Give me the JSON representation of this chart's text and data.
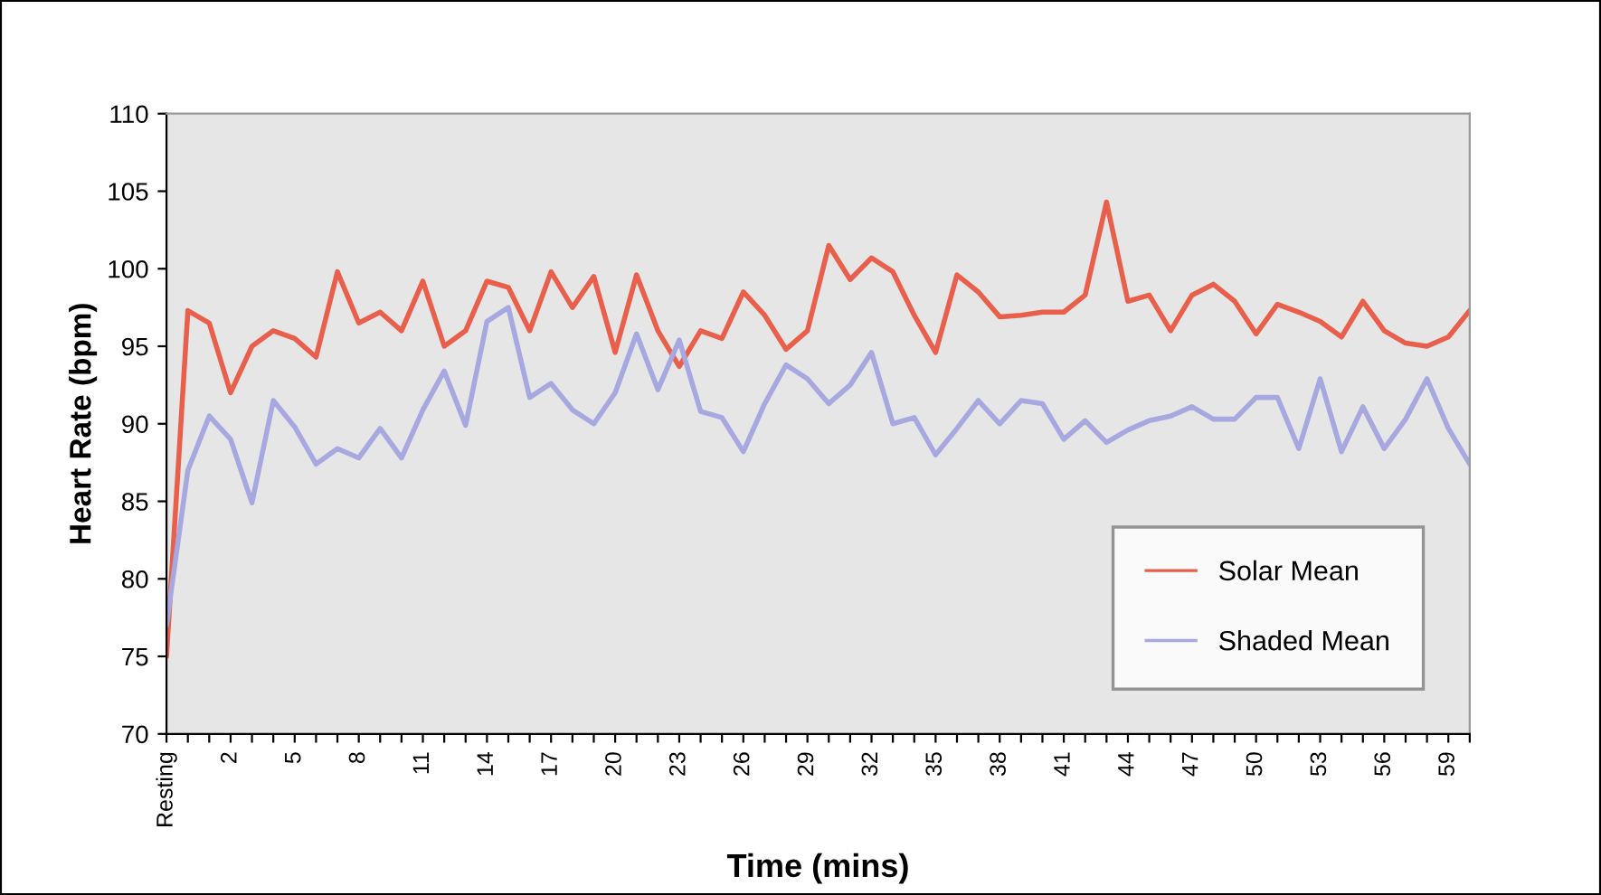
{
  "chart_data": {
    "type": "line",
    "xlabel": "Time (mins)",
    "ylabel": "Heart Rate (bpm)",
    "categories": [
      "Resting",
      null,
      null,
      "2",
      null,
      null,
      "5",
      null,
      null,
      "8",
      null,
      null,
      "11",
      null,
      null,
      "14",
      null,
      null,
      "17",
      null,
      null,
      "20",
      null,
      null,
      "23",
      null,
      null,
      "26",
      null,
      null,
      "29",
      null,
      null,
      "32",
      null,
      null,
      "35",
      null,
      null,
      "38",
      null,
      null,
      "41",
      null,
      null,
      "44",
      null,
      null,
      "47",
      null,
      null,
      "50",
      null,
      null,
      "53",
      null,
      null,
      "56",
      null,
      null,
      "59",
      null
    ],
    "ylim": [
      70,
      110
    ],
    "yticks": [
      70,
      75,
      80,
      85,
      90,
      95,
      100,
      105,
      110
    ],
    "grid": false,
    "legend": "bottom right",
    "marker": "none",
    "line_style": "solid",
    "series": [
      {
        "name": "Solar Mean",
        "color": "#e8604c",
        "values": [
          75,
          97.3,
          96.5,
          92,
          95,
          96,
          95.5,
          94.3,
          99.8,
          96.5,
          97.2,
          96,
          99.2,
          95,
          96,
          99.2,
          98.8,
          96,
          99.8,
          97.5,
          99.5,
          94.6,
          99.6,
          96,
          93.7,
          96,
          95.5,
          98.5,
          97,
          94.8,
          96,
          101.5,
          99.3,
          100.7,
          99.8,
          97,
          94.6,
          99.6,
          98.5,
          96.9,
          97,
          97.2,
          97.2,
          98.3,
          104.3,
          97.9,
          98.3,
          96,
          98.3,
          99,
          97.9,
          95.8,
          97.7,
          97.2,
          96.6,
          95.6,
          97.9,
          96,
          95.2,
          95,
          95.6,
          97.3
        ]
      },
      {
        "name": "Shaded Mean",
        "color": "#a8a8e0",
        "values": [
          77,
          87,
          90.5,
          89,
          84.9,
          91.5,
          89.8,
          87.4,
          88.4,
          87.8,
          89.7,
          87.8,
          90.9,
          93.4,
          89.9,
          96.6,
          97.5,
          91.7,
          92.6,
          90.9,
          90,
          92,
          95.8,
          92.2,
          95.4,
          90.8,
          90.4,
          88.2,
          91.3,
          93.8,
          92.9,
          91.3,
          92.5,
          94.6,
          90,
          90.4,
          88,
          89.7,
          91.5,
          90,
          91.5,
          91.3,
          89,
          90.2,
          88.8,
          89.6,
          90.2,
          90.5,
          91.1,
          90.3,
          90.3,
          91.7,
          91.7,
          88.4,
          92.9,
          88.2,
          91.1,
          88.4,
          90.3,
          92.9,
          89.7,
          87.4
        ]
      }
    ]
  }
}
